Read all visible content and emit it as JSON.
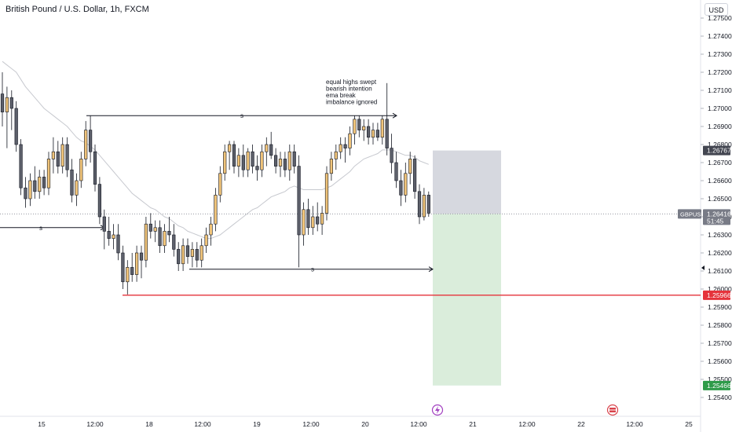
{
  "header": {
    "title": "British Pound / U.S. Dollar, 1h, FXCM",
    "currency_button": "USD"
  },
  "chart_data": {
    "type": "candlestick",
    "title": "British Pound / U.S. Dollar, 1h, FXCM",
    "ylim": [
      1.2536,
      1.2758
    ],
    "y_ticks": [
      "1.27500",
      "1.27400",
      "1.27300",
      "1.27200",
      "1.27100",
      "1.27000",
      "1.26900",
      "1.26800",
      "1.26700",
      "1.26600",
      "1.26500",
      "1.26400",
      "1.26300",
      "1.26200",
      "1.26100",
      "1.26000",
      "1.25900",
      "1.25800",
      "1.25700",
      "1.25600",
      "1.25500",
      "1.25400"
    ],
    "x_ticks": [
      "15",
      "12:00",
      "18",
      "12:00",
      "19",
      "12:00",
      "20",
      "12:00",
      "21",
      "12:00",
      "22",
      "12:00",
      "25"
    ],
    "bull_color": "#f0c47a",
    "bear_color": "#5d606b",
    "ema_color": "#c7c9cf",
    "candles": [
      {
        "o": 1.2708,
        "h": 1.272,
        "l": 1.269,
        "c": 1.2698
      },
      {
        "o": 1.2698,
        "h": 1.2712,
        "l": 1.2678,
        "c": 1.2706
      },
      {
        "o": 1.2706,
        "h": 1.271,
        "l": 1.2688,
        "c": 1.27
      },
      {
        "o": 1.27,
        "h": 1.2704,
        "l": 1.2676,
        "c": 1.268
      },
      {
        "o": 1.268,
        "h": 1.2683,
        "l": 1.2652,
        "c": 1.2656
      },
      {
        "o": 1.2656,
        "h": 1.2662,
        "l": 1.2645,
        "c": 1.265
      },
      {
        "o": 1.265,
        "h": 1.2664,
        "l": 1.2646,
        "c": 1.266
      },
      {
        "o": 1.266,
        "h": 1.2668,
        "l": 1.265,
        "c": 1.2654
      },
      {
        "o": 1.2654,
        "h": 1.2666,
        "l": 1.265,
        "c": 1.2662
      },
      {
        "o": 1.2662,
        "h": 1.2666,
        "l": 1.2652,
        "c": 1.2656
      },
      {
        "o": 1.2656,
        "h": 1.2676,
        "l": 1.2652,
        "c": 1.2672
      },
      {
        "o": 1.2672,
        "h": 1.2684,
        "l": 1.2664,
        "c": 1.2676
      },
      {
        "o": 1.2676,
        "h": 1.2682,
        "l": 1.2664,
        "c": 1.2668
      },
      {
        "o": 1.2668,
        "h": 1.2684,
        "l": 1.2664,
        "c": 1.268
      },
      {
        "o": 1.268,
        "h": 1.2684,
        "l": 1.2662,
        "c": 1.2666
      },
      {
        "o": 1.2666,
        "h": 1.2672,
        "l": 1.2648,
        "c": 1.2652
      },
      {
        "o": 1.2652,
        "h": 1.2664,
        "l": 1.2646,
        "c": 1.266
      },
      {
        "o": 1.266,
        "h": 1.2676,
        "l": 1.2656,
        "c": 1.2672
      },
      {
        "o": 1.2672,
        "h": 1.2693,
        "l": 1.2668,
        "c": 1.2688
      },
      {
        "o": 1.2688,
        "h": 1.2696,
        "l": 1.267,
        "c": 1.2676
      },
      {
        "o": 1.2676,
        "h": 1.268,
        "l": 1.2654,
        "c": 1.2658
      },
      {
        "o": 1.2658,
        "h": 1.2662,
        "l": 1.2636,
        "c": 1.264
      },
      {
        "o": 1.264,
        "h": 1.2644,
        "l": 1.2622,
        "c": 1.2632
      },
      {
        "o": 1.2632,
        "h": 1.264,
        "l": 1.2624,
        "c": 1.2628
      },
      {
        "o": 1.2628,
        "h": 1.2636,
        "l": 1.2622,
        "c": 1.263
      },
      {
        "o": 1.263,
        "h": 1.2636,
        "l": 1.2616,
        "c": 1.262
      },
      {
        "o": 1.262,
        "h": 1.2624,
        "l": 1.26,
        "c": 1.2604
      },
      {
        "o": 1.2604,
        "h": 1.2616,
        "l": 1.2597,
        "c": 1.2612
      },
      {
        "o": 1.2612,
        "h": 1.262,
        "l": 1.2604,
        "c": 1.2608
      },
      {
        "o": 1.2608,
        "h": 1.2624,
        "l": 1.2604,
        "c": 1.262
      },
      {
        "o": 1.262,
        "h": 1.2624,
        "l": 1.2606,
        "c": 1.2616
      },
      {
        "o": 1.2616,
        "h": 1.264,
        "l": 1.2612,
        "c": 1.2636
      },
      {
        "o": 1.2636,
        "h": 1.2642,
        "l": 1.2628,
        "c": 1.2632
      },
      {
        "o": 1.2632,
        "h": 1.2638,
        "l": 1.2626,
        "c": 1.2634
      },
      {
        "o": 1.2634,
        "h": 1.2638,
        "l": 1.262,
        "c": 1.2624
      },
      {
        "o": 1.2624,
        "h": 1.2636,
        "l": 1.262,
        "c": 1.2632
      },
      {
        "o": 1.2632,
        "h": 1.264,
        "l": 1.2626,
        "c": 1.263
      },
      {
        "o": 1.263,
        "h": 1.2636,
        "l": 1.2618,
        "c": 1.2622
      },
      {
        "o": 1.2622,
        "h": 1.2626,
        "l": 1.261,
        "c": 1.2614
      },
      {
        "o": 1.2614,
        "h": 1.2628,
        "l": 1.261,
        "c": 1.2624
      },
      {
        "o": 1.2624,
        "h": 1.2628,
        "l": 1.2614,
        "c": 1.2618
      },
      {
        "o": 1.2618,
        "h": 1.2626,
        "l": 1.2612,
        "c": 1.2622
      },
      {
        "o": 1.2622,
        "h": 1.2626,
        "l": 1.2612,
        "c": 1.2616
      },
      {
        "o": 1.2616,
        "h": 1.2628,
        "l": 1.2612,
        "c": 1.2624
      },
      {
        "o": 1.2624,
        "h": 1.2634,
        "l": 1.262,
        "c": 1.263
      },
      {
        "o": 1.263,
        "h": 1.264,
        "l": 1.2624,
        "c": 1.2636
      },
      {
        "o": 1.2636,
        "h": 1.2656,
        "l": 1.2632,
        "c": 1.2652
      },
      {
        "o": 1.2652,
        "h": 1.2668,
        "l": 1.2648,
        "c": 1.2664
      },
      {
        "o": 1.2664,
        "h": 1.268,
        "l": 1.266,
        "c": 1.2676
      },
      {
        "o": 1.2676,
        "h": 1.2682,
        "l": 1.2666,
        "c": 1.268
      },
      {
        "o": 1.268,
        "h": 1.2682,
        "l": 1.2664,
        "c": 1.2668
      },
      {
        "o": 1.2668,
        "h": 1.2678,
        "l": 1.2662,
        "c": 1.2674
      },
      {
        "o": 1.2674,
        "h": 1.268,
        "l": 1.2662,
        "c": 1.2666
      },
      {
        "o": 1.2666,
        "h": 1.2678,
        "l": 1.2662,
        "c": 1.2676
      },
      {
        "o": 1.2676,
        "h": 1.268,
        "l": 1.2664,
        "c": 1.2668
      },
      {
        "o": 1.2668,
        "h": 1.2674,
        "l": 1.266,
        "c": 1.2666
      },
      {
        "o": 1.2666,
        "h": 1.268,
        "l": 1.2662,
        "c": 1.2676
      },
      {
        "o": 1.2676,
        "h": 1.2684,
        "l": 1.2668,
        "c": 1.268
      },
      {
        "o": 1.268,
        "h": 1.2687,
        "l": 1.2672,
        "c": 1.2674
      },
      {
        "o": 1.2674,
        "h": 1.2678,
        "l": 1.2664,
        "c": 1.2668
      },
      {
        "o": 1.2668,
        "h": 1.2676,
        "l": 1.2662,
        "c": 1.2672
      },
      {
        "o": 1.2672,
        "h": 1.2676,
        "l": 1.2662,
        "c": 1.2666
      },
      {
        "o": 1.2666,
        "h": 1.268,
        "l": 1.266,
        "c": 1.2676
      },
      {
        "o": 1.2676,
        "h": 1.268,
        "l": 1.2664,
        "c": 1.2668
      },
      {
        "o": 1.2668,
        "h": 1.2674,
        "l": 1.2612,
        "c": 1.263
      },
      {
        "o": 1.263,
        "h": 1.2648,
        "l": 1.2624,
        "c": 1.2644
      },
      {
        "o": 1.2644,
        "h": 1.265,
        "l": 1.263,
        "c": 1.2634
      },
      {
        "o": 1.2634,
        "h": 1.2646,
        "l": 1.263,
        "c": 1.264
      },
      {
        "o": 1.264,
        "h": 1.2648,
        "l": 1.2632,
        "c": 1.2636
      },
      {
        "o": 1.2636,
        "h": 1.2646,
        "l": 1.263,
        "c": 1.2642
      },
      {
        "o": 1.2642,
        "h": 1.2668,
        "l": 1.2638,
        "c": 1.2664
      },
      {
        "o": 1.2664,
        "h": 1.2676,
        "l": 1.266,
        "c": 1.2672
      },
      {
        "o": 1.2672,
        "h": 1.268,
        "l": 1.2666,
        "c": 1.2676
      },
      {
        "o": 1.2676,
        "h": 1.2684,
        "l": 1.2672,
        "c": 1.268
      },
      {
        "o": 1.268,
        "h": 1.2684,
        "l": 1.267,
        "c": 1.2678
      },
      {
        "o": 1.2678,
        "h": 1.269,
        "l": 1.2674,
        "c": 1.2686
      },
      {
        "o": 1.2686,
        "h": 1.2696,
        "l": 1.268,
        "c": 1.2694
      },
      {
        "o": 1.2694,
        "h": 1.2696,
        "l": 1.2684,
        "c": 1.2688
      },
      {
        "o": 1.2688,
        "h": 1.2694,
        "l": 1.2682,
        "c": 1.269
      },
      {
        "o": 1.269,
        "h": 1.2694,
        "l": 1.268,
        "c": 1.2684
      },
      {
        "o": 1.2684,
        "h": 1.2692,
        "l": 1.268,
        "c": 1.2688
      },
      {
        "o": 1.2688,
        "h": 1.2692,
        "l": 1.2682,
        "c": 1.2684
      },
      {
        "o": 1.2684,
        "h": 1.2696,
        "l": 1.268,
        "c": 1.2694
      },
      {
        "o": 1.2694,
        "h": 1.2714,
        "l": 1.2674,
        "c": 1.2678
      },
      {
        "o": 1.2678,
        "h": 1.2686,
        "l": 1.2664,
        "c": 1.267
      },
      {
        "o": 1.267,
        "h": 1.2676,
        "l": 1.2656,
        "c": 1.266
      },
      {
        "o": 1.266,
        "h": 1.2666,
        "l": 1.2646,
        "c": 1.2652
      },
      {
        "o": 1.2652,
        "h": 1.267,
        "l": 1.2648,
        "c": 1.2664
      },
      {
        "o": 1.2664,
        "h": 1.2676,
        "l": 1.2658,
        "c": 1.2672
      },
      {
        "o": 1.2672,
        "h": 1.2674,
        "l": 1.265,
        "c": 1.2654
      },
      {
        "o": 1.2654,
        "h": 1.2658,
        "l": 1.2636,
        "c": 1.264
      },
      {
        "o": 1.264,
        "h": 1.2656,
        "l": 1.2638,
        "c": 1.2652
      },
      {
        "o": 1.2652,
        "h": 1.2654,
        "l": 1.264,
        "c": 1.2642
      }
    ],
    "ema": [
      1.2726,
      1.2724,
      1.2722,
      1.272,
      1.2716,
      1.2712,
      1.2709,
      1.2706,
      1.2703,
      1.27,
      1.2698,
      1.2696,
      1.2694,
      1.2692,
      1.269,
      1.2687,
      1.2684,
      1.2682,
      1.2681,
      1.2679,
      1.2677,
      1.2674,
      1.2671,
      1.2668,
      1.2665,
      1.2662,
      1.2659,
      1.2656,
      1.2653,
      1.2651,
      1.2649,
      1.2647,
      1.2645,
      1.2644,
      1.2642,
      1.264,
      1.2639,
      1.2637,
      1.2635,
      1.2634,
      1.2632,
      1.2631,
      1.263,
      1.2629,
      1.2628,
      1.2628,
      1.2629,
      1.263,
      1.2632,
      1.2634,
      1.2636,
      1.2638,
      1.264,
      1.2642,
      1.2644,
      1.2645,
      1.2647,
      1.2649,
      1.2651,
      1.2652,
      1.2653,
      1.2654,
      1.2656,
      1.2657,
      1.2656,
      1.2655,
      1.2655,
      1.2655,
      1.2655,
      1.2655,
      1.2656,
      1.2657,
      1.2659,
      1.2661,
      1.2663,
      1.2665,
      1.2668,
      1.267,
      1.2672,
      1.2673,
      1.2674,
      1.2675,
      1.2677,
      1.2677,
      1.2677,
      1.2676,
      1.2675,
      1.2674,
      1.2674,
      1.2673,
      1.2671,
      1.267,
      1.2669
    ],
    "annotations": {
      "note": [
        "equal highs swept",
        "bearish intention",
        "ema break",
        "imbalance ignored"
      ],
      "sweep_label": "s",
      "level_high": 1.2696,
      "level_mid": 1.2634,
      "level_low": 1.2611,
      "red_level": 1.25966,
      "red_color": "#e5333b"
    },
    "position": {
      "entry": 1.26416,
      "stop": 1.26767,
      "target": 1.25466,
      "loss_color": "#d1d4dc",
      "profit_color": "#d6ebd7"
    },
    "price_labels": {
      "current_symbol": "GBPUSD",
      "current": "1.26416",
      "countdown": "51:45",
      "stop": "1.26767",
      "red": "1.25966",
      "target": "1.25466"
    }
  }
}
